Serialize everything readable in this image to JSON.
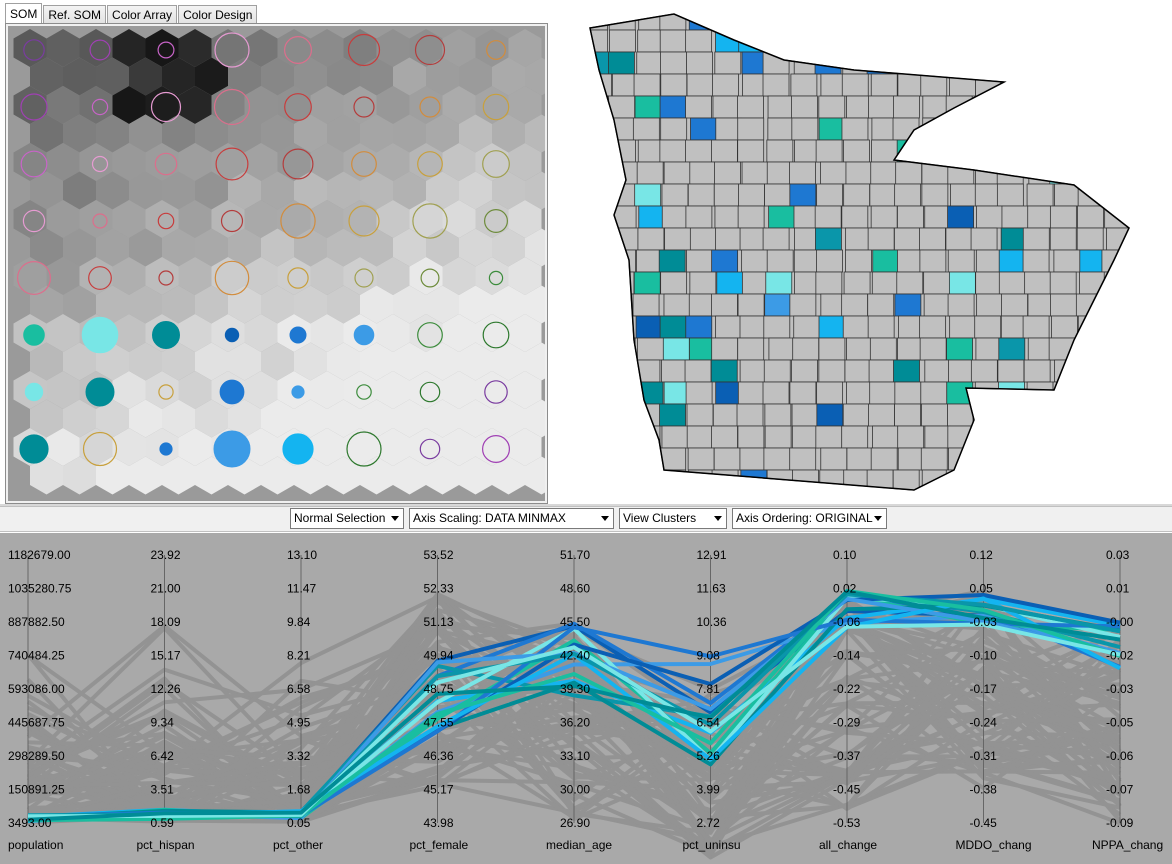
{
  "tabs": [
    "SOM",
    "Ref. SOM",
    "Color Array",
    "Color Design"
  ],
  "active_tab": 0,
  "toolbar": {
    "selection_mode": "Normal Selection",
    "axis_scaling": "Axis Scaling: DATA MINMAX",
    "view": "View Clusters",
    "axis_ordering": "Axis Ordering: ORIGINAL"
  },
  "colors": {
    "pcp_background": "#a9a9a9",
    "county_fill": "#c0c0c0",
    "highlight_palette": [
      "#0a5fb4",
      "#1e78d2",
      "#3c9be6",
      "#14b4f0",
      "#0a96aa",
      "#19bea0",
      "#78e6e6",
      "#008c96"
    ]
  },
  "parallel_coordinates": {
    "axes": [
      {
        "name": "population",
        "ticks": [
          "1182679.00",
          "1035280.75",
          "887882.50",
          "740484.25",
          "593086.00",
          "445687.75",
          "298289.50",
          "150891.25",
          "3493.00"
        ]
      },
      {
        "name": "pct_hispan",
        "ticks": [
          "23.92",
          "21.00",
          "18.09",
          "15.17",
          "12.26",
          "9.34",
          "6.42",
          "3.51",
          "0.59"
        ]
      },
      {
        "name": "pct_other",
        "ticks": [
          "13.10",
          "11.47",
          "9.84",
          "8.21",
          "6.58",
          "4.95",
          "3.32",
          "1.68",
          "0.05"
        ]
      },
      {
        "name": "pct_female",
        "ticks": [
          "53.52",
          "52.33",
          "51.13",
          "49.94",
          "48.75",
          "47.55",
          "46.36",
          "45.17",
          "43.98"
        ]
      },
      {
        "name": "median_age",
        "ticks": [
          "51.70",
          "48.60",
          "45.50",
          "42.40",
          "39.30",
          "36.20",
          "33.10",
          "30.00",
          "26.90"
        ]
      },
      {
        "name": "pct_uninsu",
        "ticks": [
          "12.91",
          "11.63",
          "10.36",
          "9.08",
          "7.81",
          "6.54",
          "5.26",
          "3.99",
          "2.72"
        ]
      },
      {
        "name": "all_change",
        "ticks": [
          "0.10",
          "0.02",
          "-0.06",
          "-0.14",
          "-0.22",
          "-0.29",
          "-0.37",
          "-0.45",
          "-0.53"
        ]
      },
      {
        "name": "MDDO_chang",
        "ticks": [
          "0.12",
          "0.05",
          "-0.03",
          "-0.10",
          "-0.17",
          "-0.24",
          "-0.31",
          "-0.38",
          "-0.45"
        ]
      },
      {
        "name": "NPPA_chang",
        "ticks": [
          "0.03",
          "0.01",
          "-0.00",
          "-0.02",
          "-0.03",
          "-0.05",
          "-0.06",
          "-0.07",
          "-0.09"
        ]
      }
    ]
  }
}
